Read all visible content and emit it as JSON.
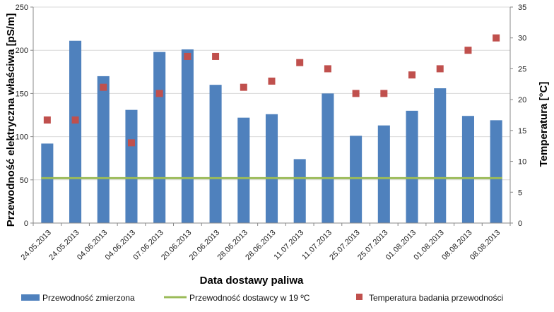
{
  "chart_data": {
    "type": "bar",
    "xlabel": "Data dostawy paliwa",
    "ylabel": "Przewodność elektryczna właściwa [pS/m]",
    "y2label": "Temperatura [°C]",
    "ylim": [
      0,
      250
    ],
    "y2lim": [
      0,
      35
    ],
    "yticks": [
      "0",
      "50",
      "100",
      "150",
      "200",
      "250"
    ],
    "y2ticks": [
      "0",
      "5",
      "10",
      "15",
      "20",
      "25",
      "30",
      "35"
    ],
    "categories": [
      "24.05.2013",
      "24.05.2013",
      "04.06.2013",
      "04.06.2013",
      "07.06.2013",
      "20.06.2013",
      "20.06.2013",
      "28.06.2013",
      "28.06.2013",
      "11.07.2013",
      "11.07.2013",
      "25.07.2013",
      "25.07.2013",
      "01.08.2013",
      "01.08.2013",
      "08.08.2013",
      "08.08.2013"
    ],
    "series": [
      {
        "name": "Przewodność zmierzona",
        "type": "bar",
        "axis": "left",
        "color": "#4F81BD",
        "values": [
          92,
          211,
          170,
          131,
          198,
          201,
          160,
          122,
          126,
          74,
          150,
          101,
          113,
          130,
          156,
          124,
          119
        ]
      },
      {
        "name": "Przewodność dostawcy w 19 ºC",
        "type": "line",
        "axis": "left",
        "color": "#9BBB59",
        "values": [
          52,
          52,
          52,
          52,
          52,
          52,
          52,
          52,
          52,
          52,
          52,
          52,
          52,
          52,
          52,
          52,
          52
        ]
      },
      {
        "name": "Temperatura badania przewodności",
        "type": "scatter",
        "axis": "right",
        "color": "#C0504D",
        "values": [
          16.7,
          16.7,
          22,
          13,
          21,
          27,
          27,
          22,
          23,
          26,
          25,
          21,
          21,
          24,
          25,
          28,
          30
        ]
      }
    ],
    "legend_position": "bottom"
  }
}
